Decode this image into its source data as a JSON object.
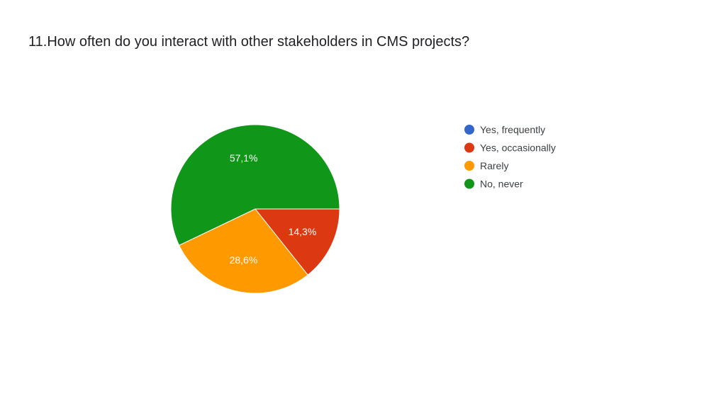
{
  "title": "11.How often do you interact with other stakeholders in CMS projects?",
  "chart_data": {
    "type": "pie",
    "title": "11.How often do you interact with other stakeholders in CMS projects?",
    "legend_position": "right",
    "slices": [
      {
        "label": "Yes, frequently",
        "value": 0,
        "display": "",
        "color": "#3366cc"
      },
      {
        "label": "Yes, occasionally",
        "value": 14.3,
        "display": "14,3%",
        "color": "#dc3912"
      },
      {
        "label": "Rarely",
        "value": 28.6,
        "display": "28,6%",
        "color": "#ff9900"
      },
      {
        "label": "No, never",
        "value": 57.1,
        "display": "57,1%",
        "color": "#109618"
      }
    ]
  }
}
